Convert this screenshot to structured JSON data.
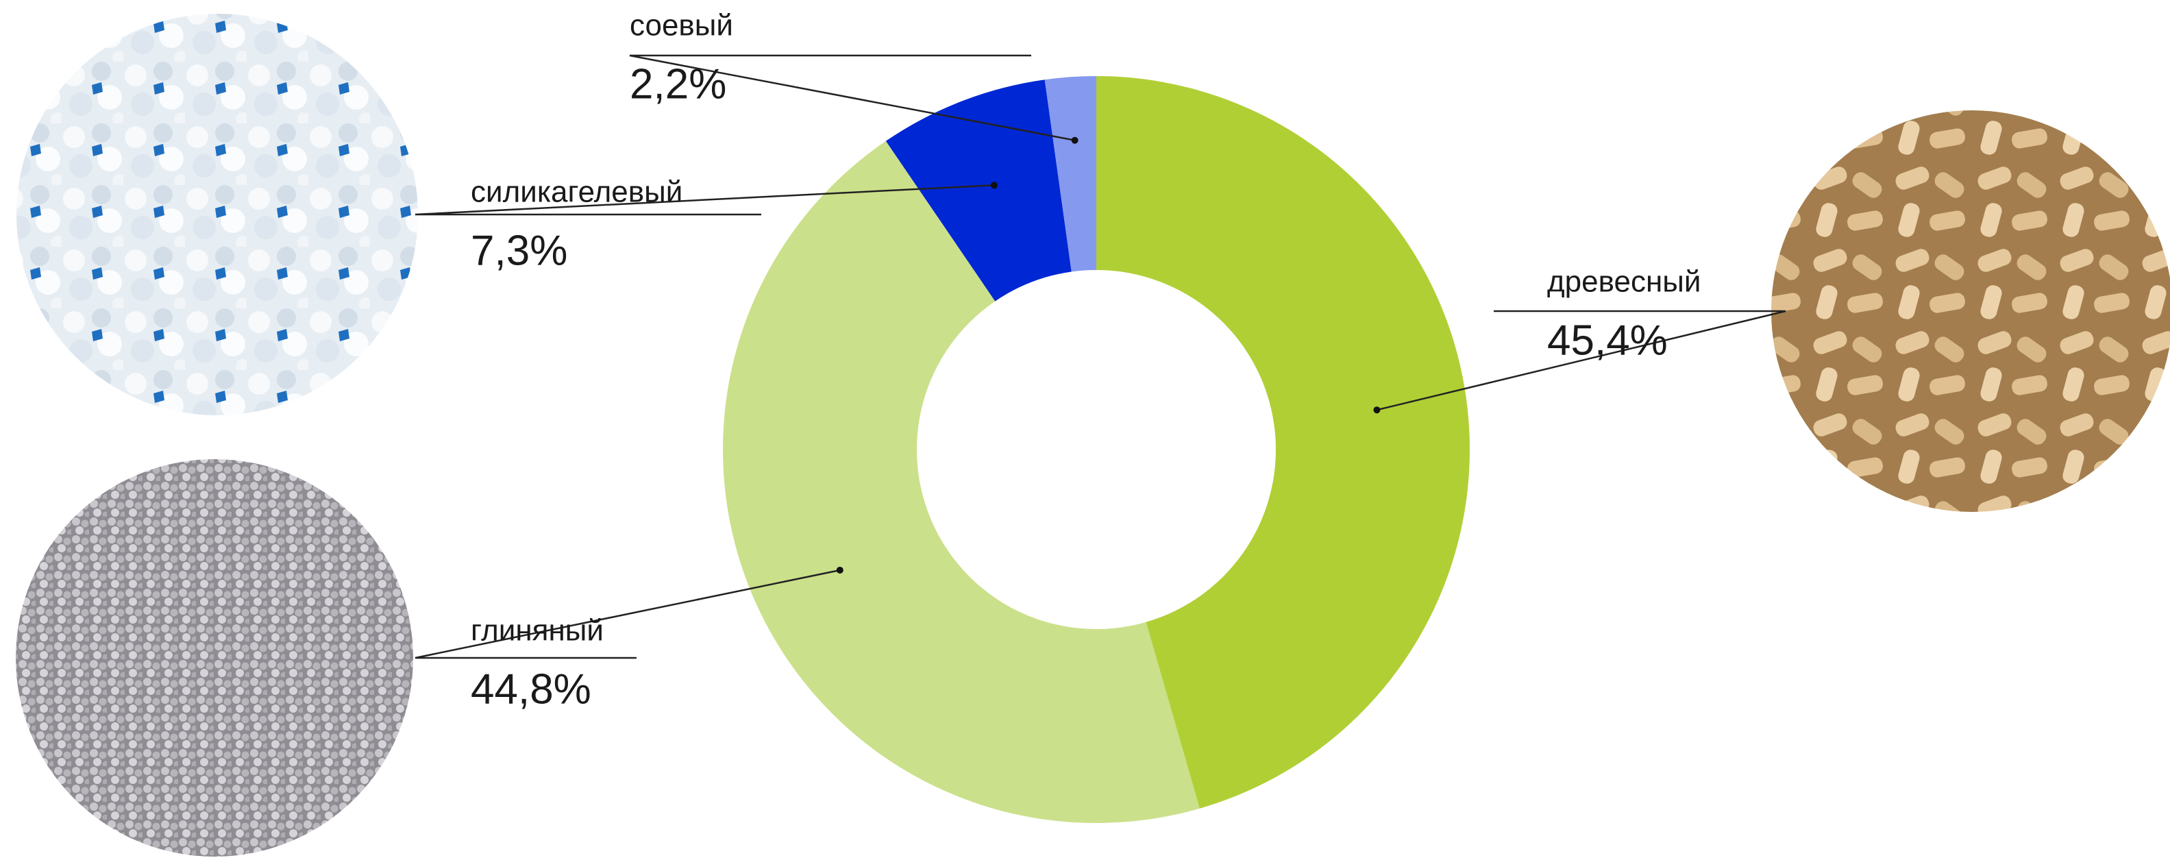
{
  "chart_data": {
    "type": "pie",
    "donut": true,
    "categories": [
      "древесный",
      "глиняный",
      "силикагелевый",
      "соевый"
    ],
    "values": [
      45.4,
      44.8,
      7.3,
      2.2
    ],
    "value_labels": [
      "45,4%",
      "44,8%",
      "7,3%",
      "2,2%"
    ],
    "colors": [
      "#b0cf35",
      "#cbe08a",
      "#0027d4",
      "#8599ee"
    ]
  }
}
